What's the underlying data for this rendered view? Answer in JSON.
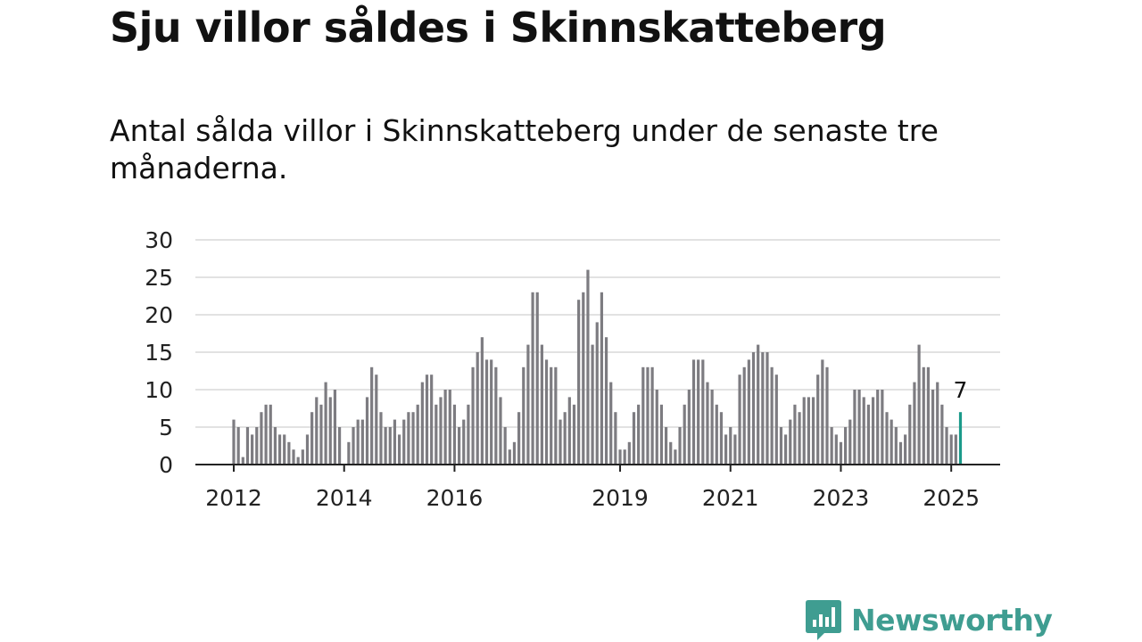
{
  "title": "Sju villor såldes i Skinnskatteberg",
  "subtitle": "Antal sålda villor i Skinnskatteberg under de senaste tre månaderna.",
  "brand": {
    "name": "Newsworthy",
    "color": "#3f9d91"
  },
  "chart_data": {
    "type": "bar",
    "ylim": [
      0,
      30
    ],
    "yticks": [
      0,
      5,
      10,
      15,
      20,
      25,
      30
    ],
    "xtick_labels": [
      "2012",
      "2014",
      "2016",
      "2019",
      "2021",
      "2023",
      "2025"
    ],
    "bar_color": "#7d7c81",
    "highlight_color": "#1b9a8a",
    "grid": true,
    "annotation": {
      "label": "7",
      "target": "last"
    },
    "series": [
      {
        "values": [
          6,
          5,
          1,
          5,
          4,
          5,
          7,
          8,
          8,
          5,
          4,
          4,
          3,
          2,
          1,
          2,
          4,
          7,
          9,
          8,
          11,
          9,
          10,
          5,
          0,
          3,
          5,
          6,
          6,
          9,
          13,
          12,
          7,
          5,
          5,
          6,
          4,
          6,
          7,
          7,
          8,
          11,
          12,
          12,
          8,
          9,
          10,
          10,
          8,
          5,
          6,
          8,
          13,
          15,
          17,
          14,
          14,
          13,
          9,
          5,
          2,
          3,
          7,
          13,
          16,
          23,
          23,
          16,
          14,
          13,
          13,
          6,
          7,
          9,
          8,
          22,
          23,
          26,
          16,
          19,
          23,
          17,
          11,
          7,
          2,
          2,
          3,
          7,
          8,
          13,
          13,
          13,
          10,
          8,
          5,
          3,
          2,
          5,
          8,
          10,
          14,
          14,
          14,
          11,
          10,
          8,
          7,
          4,
          5,
          4,
          12,
          13,
          14,
          15,
          16,
          15,
          15,
          13,
          12,
          5,
          4,
          6,
          8,
          7,
          9,
          9,
          9,
          12,
          14,
          13,
          5,
          4,
          3,
          5,
          6,
          10,
          10,
          9,
          8,
          9,
          10,
          10,
          7,
          6,
          5,
          3,
          4,
          8,
          11,
          16,
          13,
          13,
          10,
          11,
          8,
          5,
          4,
          4,
          7
        ]
      }
    ]
  }
}
